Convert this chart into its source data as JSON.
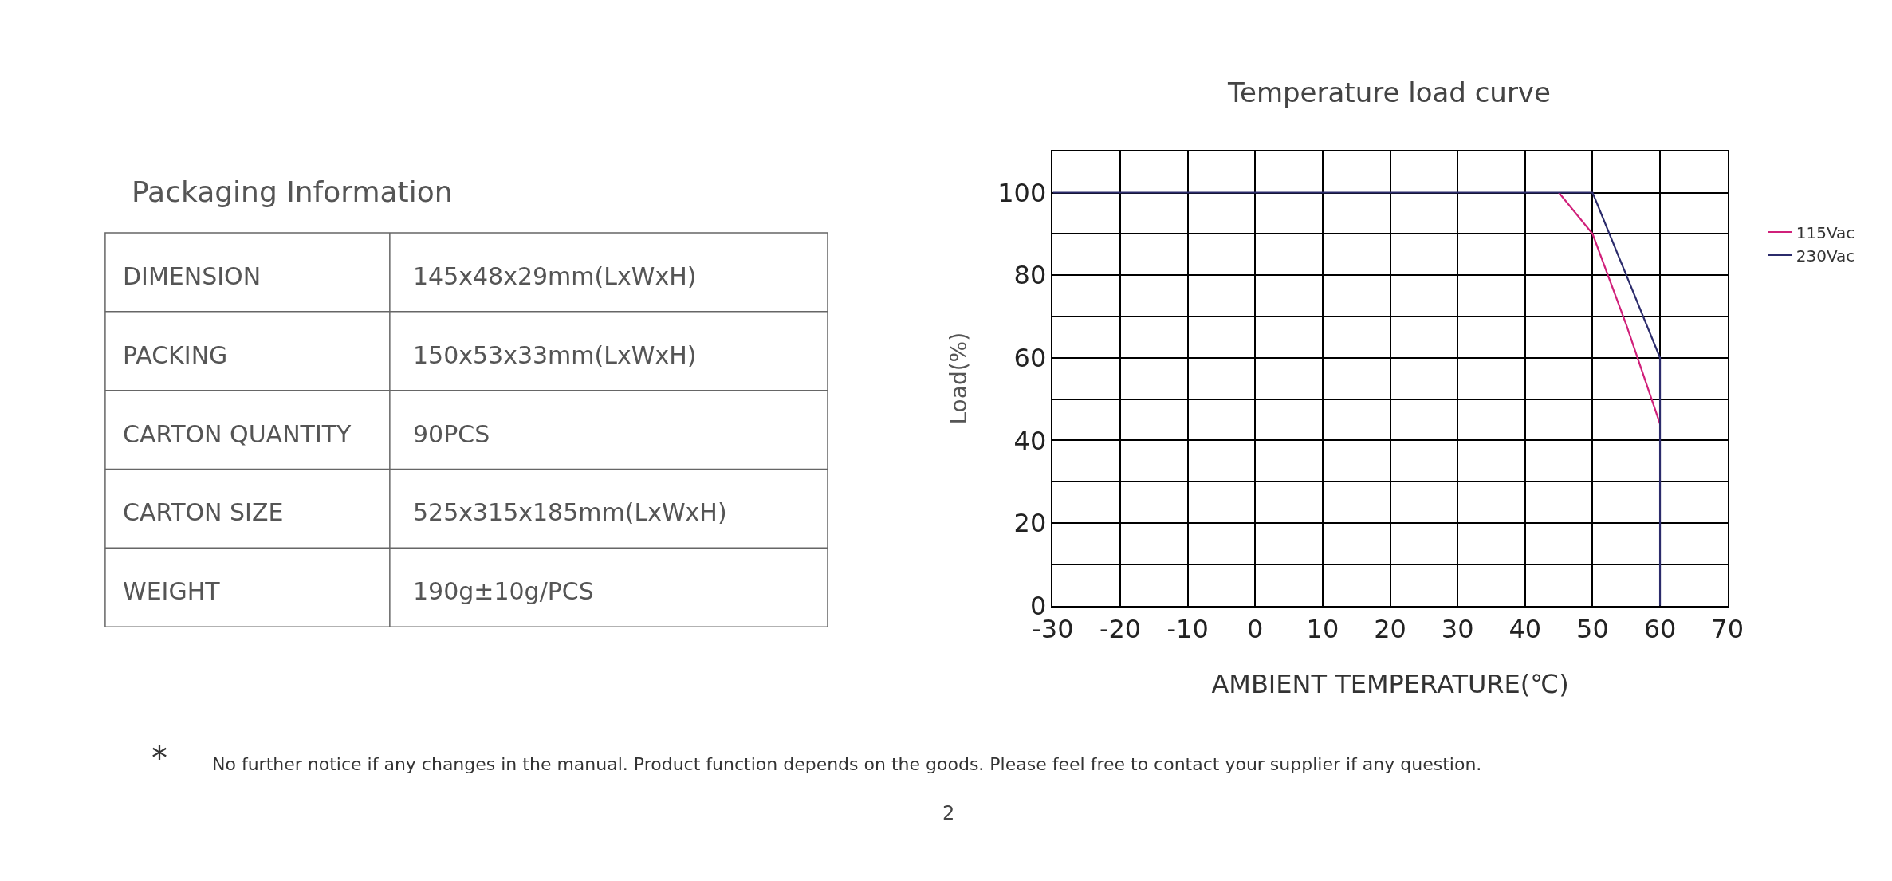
{
  "chart_data": [
    {
      "type": "other",
      "title": "Packaging Information",
      "annotations": [
        "DIMENSION",
        "145x48x29mm(LxWxH)",
        "PACKING",
        "150x53x33mm(LxWxH)",
        "CARTON QUANTITY",
        "90PCS",
        "CARTON SIZE",
        "525x315x185mm(LxWxH)",
        "WEIGHT",
        "190g±10g/PCS"
      ]
    },
    {
      "type": "line",
      "title": "Temperature load curve",
      "xlabel": "AMBIENT TEMPERATURE(℃)",
      "ylabel": "Load(%)",
      "series": [
        {
          "name": "115Vac",
          "color": "#d0207a",
          "x": [
            45,
            50,
            55,
            60
          ],
          "values": [
            100,
            90,
            68,
            44
          ]
        },
        {
          "name": "230Vac",
          "color": "#2b2b6b",
          "x": [
            -30,
            50,
            60,
            60
          ],
          "values": [
            100,
            100,
            60,
            0
          ]
        }
      ],
      "xlim": [
        -30,
        70
      ],
      "xticks": [
        -30,
        -20,
        -10,
        0,
        10,
        20,
        30,
        40,
        50,
        60,
        70
      ],
      "ylim": [
        0,
        110
      ],
      "yticks": [
        0,
        {
          "value": 10,
          "label": null
        },
        20,
        {
          "value": 30,
          "label": null
        },
        40,
        {
          "value": 50,
          "label": null
        },
        60,
        {
          "value": 70,
          "label": null
        },
        80,
        {
          "value": 90,
          "label": null
        },
        100,
        {
          "value": 110,
          "label": null
        }
      ],
      "grid": true,
      "legend": "right",
      "marker": "none",
      "line_style": "solid",
      "annotations": [
        "*",
        "No further notice if any changes in the manual. Product function depends on the goods. Please feel free to contact your supplier if any question.",
        "2"
      ]
    }
  ]
}
